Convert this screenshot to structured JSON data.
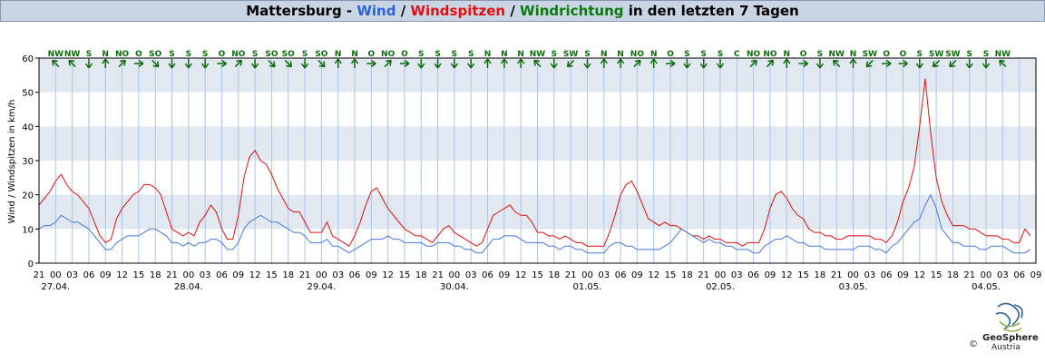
{
  "title": {
    "station": "Mattersburg",
    "sep1": " - ",
    "wind": "Wind",
    "sep2": " / ",
    "gusts": "Windspitzen",
    "sep3": " / ",
    "direction": "Windrichtung",
    "suffix": " in den letzten 7 Tagen"
  },
  "colors": {
    "wind": "#4a78d8",
    "gusts": "#e01010",
    "direction": "#0a6a0a",
    "band": "#e2e8f0",
    "vgrid": "#a9c6ee",
    "title_bg": "#c9d4e5"
  },
  "logo": {
    "name": "GeoSphere",
    "country": "Austria",
    "copyright": "©"
  },
  "chart_data": {
    "type": "line",
    "title": "Mattersburg - Wind / Windspitzen / Windrichtung in den letzten 7 Tagen",
    "ylabel": "Wind / Windspitzen in km/h",
    "xlabel": "",
    "ylim": [
      0,
      60
    ],
    "yticks": [
      0,
      10,
      20,
      30,
      40,
      50,
      60
    ],
    "grid": true,
    "x_unit": "hours since 26.04. 21:00",
    "xlim": [
      0,
      180
    ],
    "hour_ticks": [
      "21",
      "00",
      "03",
      "06",
      "09",
      "12",
      "15",
      "18",
      "21",
      "00",
      "03",
      "06",
      "09",
      "12",
      "15",
      "18",
      "21",
      "00",
      "03",
      "06",
      "09",
      "12",
      "15",
      "18",
      "21",
      "00",
      "03",
      "06",
      "09",
      "12",
      "15",
      "18",
      "21",
      "00",
      "03",
      "06",
      "09",
      "12",
      "15",
      "18",
      "21",
      "00",
      "03",
      "06",
      "09",
      "12",
      "15",
      "18",
      "21",
      "00",
      "03",
      "06",
      "09",
      "12",
      "15",
      "18",
      "21",
      "00",
      "03",
      "06",
      "09"
    ],
    "day_labels": [
      {
        "label": "27.04.",
        "x": 3
      },
      {
        "label": "28.04.",
        "x": 27
      },
      {
        "label": "29.04.",
        "x": 51
      },
      {
        "label": "30.04.",
        "x": 75
      },
      {
        "label": "01.05.",
        "x": 99
      },
      {
        "label": "02.05.",
        "x": 123
      },
      {
        "label": "03.05.",
        "x": 147
      },
      {
        "label": "04.05.",
        "x": 171
      }
    ],
    "direction_labels": [
      "NW",
      "NW",
      "S",
      "N",
      "NO",
      "O",
      "SO",
      "S",
      "S",
      "S",
      "O",
      "NO",
      "S",
      "SO",
      "SO",
      "S",
      "SO",
      "N",
      "N",
      "O",
      "NO",
      "O",
      "S",
      "S",
      "S",
      "S",
      "N",
      "N",
      "N",
      "NW",
      "S",
      "SW",
      "S",
      "N",
      "N",
      "NO",
      "N",
      "O",
      "S",
      "S",
      "S",
      "C",
      "NO",
      "NO",
      "N",
      "O",
      "S",
      "NW",
      "N",
      "SW",
      "O",
      "O",
      "S",
      "SW",
      "SW",
      "S",
      "S",
      "NW"
    ],
    "direction_interval_h": 3,
    "direction_start_x": 3,
    "series": [
      {
        "name": "Wind",
        "x": [
          0,
          1,
          2,
          3,
          4,
          5,
          6,
          7,
          8,
          9,
          10,
          11,
          12,
          13,
          14,
          15,
          16,
          17,
          18,
          19,
          20,
          21,
          22,
          23,
          24,
          25,
          26,
          27,
          28,
          29,
          30,
          31,
          32,
          33,
          34,
          35,
          36,
          37,
          38,
          39,
          40,
          41,
          42,
          43,
          44,
          45,
          46,
          47,
          48,
          49,
          50,
          51,
          52,
          53,
          54,
          55,
          56,
          57,
          58,
          59,
          60,
          61,
          62,
          63,
          64,
          65,
          66,
          67,
          68,
          69,
          70,
          71,
          72,
          73,
          74,
          75,
          76,
          77,
          78,
          79,
          80,
          81,
          82,
          83,
          84,
          85,
          86,
          87,
          88,
          89,
          90,
          91,
          92,
          93,
          94,
          95,
          96,
          97,
          98,
          99,
          100,
          101,
          102,
          103,
          104,
          105,
          106,
          107,
          108,
          109,
          110,
          111,
          112,
          113,
          114,
          115,
          116,
          117,
          118,
          119,
          120,
          121,
          122,
          123,
          124,
          125,
          126,
          127,
          128,
          129,
          130,
          131,
          132,
          133,
          134,
          135,
          136,
          137,
          138,
          139,
          140,
          141,
          142,
          143,
          144,
          145,
          146,
          147,
          148,
          149,
          150,
          151,
          152,
          153,
          154,
          155,
          156,
          157,
          158,
          159,
          160,
          161,
          162,
          163,
          164,
          165,
          166,
          167,
          168,
          169,
          170,
          171,
          172,
          173,
          174,
          175,
          176,
          177,
          178,
          179
        ],
        "y": [
          10,
          11,
          11,
          12,
          14,
          13,
          12,
          12,
          11,
          10,
          8,
          6,
          4,
          4,
          6,
          7,
          8,
          8,
          8,
          9,
          10,
          10,
          9,
          8,
          6,
          6,
          5,
          6,
          5,
          6,
          6,
          7,
          7,
          6,
          4,
          4,
          6,
          10,
          12,
          13,
          14,
          13,
          12,
          12,
          11,
          10,
          9,
          9,
          8,
          6,
          6,
          6,
          7,
          5,
          5,
          4,
          3,
          4,
          5,
          6,
          7,
          7,
          7,
          8,
          7,
          7,
          6,
          6,
          6,
          6,
          5,
          5,
          6,
          6,
          6,
          5,
          5,
          4,
          4,
          3,
          3,
          5,
          7,
          7,
          8,
          8,
          8,
          7,
          6,
          6,
          6,
          6,
          5,
          5,
          4,
          5,
          5,
          4,
          4,
          3,
          3,
          3,
          3,
          5,
          6,
          6,
          5,
          5,
          4,
          4,
          4,
          4,
          4,
          5,
          6,
          8,
          10,
          9,
          8,
          7,
          6,
          7,
          6,
          6,
          5,
          5,
          4,
          4,
          4,
          3,
          3,
          5,
          6,
          7,
          7,
          8,
          7,
          6,
          6,
          5,
          5,
          5,
          4,
          4,
          4,
          4,
          4,
          4,
          5,
          5,
          5,
          4,
          4,
          3,
          5,
          6,
          8,
          10,
          12,
          13,
          17,
          20,
          16,
          10,
          8,
          6,
          6,
          5,
          5,
          5,
          4,
          4,
          5,
          5,
          5,
          4,
          3,
          3,
          3,
          4
        ]
      },
      {
        "name": "Windspitzen",
        "x": [
          0,
          1,
          2,
          3,
          4,
          5,
          6,
          7,
          8,
          9,
          10,
          11,
          12,
          13,
          14,
          15,
          16,
          17,
          18,
          19,
          20,
          21,
          22,
          23,
          24,
          25,
          26,
          27,
          28,
          29,
          30,
          31,
          32,
          33,
          34,
          35,
          36,
          37,
          38,
          39,
          40,
          41,
          42,
          43,
          44,
          45,
          46,
          47,
          48,
          49,
          50,
          51,
          52,
          53,
          54,
          55,
          56,
          57,
          58,
          59,
          60,
          61,
          62,
          63,
          64,
          65,
          66,
          67,
          68,
          69,
          70,
          71,
          72,
          73,
          74,
          75,
          76,
          77,
          78,
          79,
          80,
          81,
          82,
          83,
          84,
          85,
          86,
          87,
          88,
          89,
          90,
          91,
          92,
          93,
          94,
          95,
          96,
          97,
          98,
          99,
          100,
          101,
          102,
          103,
          104,
          105,
          106,
          107,
          108,
          109,
          110,
          111,
          112,
          113,
          114,
          115,
          116,
          117,
          118,
          119,
          120,
          121,
          122,
          123,
          124,
          125,
          126,
          127,
          128,
          129,
          130,
          131,
          132,
          133,
          134,
          135,
          136,
          137,
          138,
          139,
          140,
          141,
          142,
          143,
          144,
          145,
          146,
          147,
          148,
          149,
          150,
          151,
          152,
          153,
          154,
          155,
          156,
          157,
          158,
          159,
          160,
          161,
          162,
          163,
          164,
          165,
          166,
          167,
          168,
          169,
          170,
          171,
          172,
          173,
          174,
          175,
          176,
          177,
          178,
          179
        ],
        "y": [
          17,
          19,
          21,
          24,
          26,
          23,
          21,
          20,
          18,
          16,
          12,
          8,
          6,
          7,
          13,
          16,
          18,
          20,
          21,
          23,
          23,
          22,
          20,
          15,
          10,
          9,
          8,
          9,
          8,
          12,
          14,
          17,
          15,
          10,
          7,
          7,
          14,
          25,
          31,
          33,
          30,
          29,
          26,
          22,
          19,
          16,
          15,
          15,
          12,
          9,
          9,
          9,
          12,
          8,
          7,
          6,
          5,
          8,
          12,
          17,
          21,
          22,
          19,
          16,
          14,
          12,
          10,
          9,
          8,
          8,
          7,
          6,
          8,
          10,
          11,
          9,
          8,
          7,
          6,
          5,
          6,
          10,
          14,
          15,
          16,
          17,
          15,
          14,
          14,
          12,
          9,
          9,
          8,
          8,
          7,
          8,
          7,
          6,
          6,
          5,
          5,
          5,
          5,
          9,
          14,
          20,
          23,
          24,
          21,
          17,
          13,
          12,
          11,
          12,
          11,
          11,
          10,
          9,
          8,
          8,
          7,
          8,
          7,
          7,
          6,
          6,
          6,
          5,
          6,
          6,
          6,
          10,
          16,
          20,
          21,
          19,
          16,
          14,
          13,
          10,
          9,
          9,
          8,
          8,
          7,
          7,
          8,
          8,
          8,
          8,
          8,
          7,
          7,
          6,
          8,
          12,
          18,
          22,
          28,
          40,
          54,
          38,
          25,
          18,
          14,
          11,
          11,
          11,
          10,
          10,
          9,
          8,
          8,
          8,
          7,
          7,
          6,
          6,
          10,
          8
        ]
      }
    ]
  }
}
